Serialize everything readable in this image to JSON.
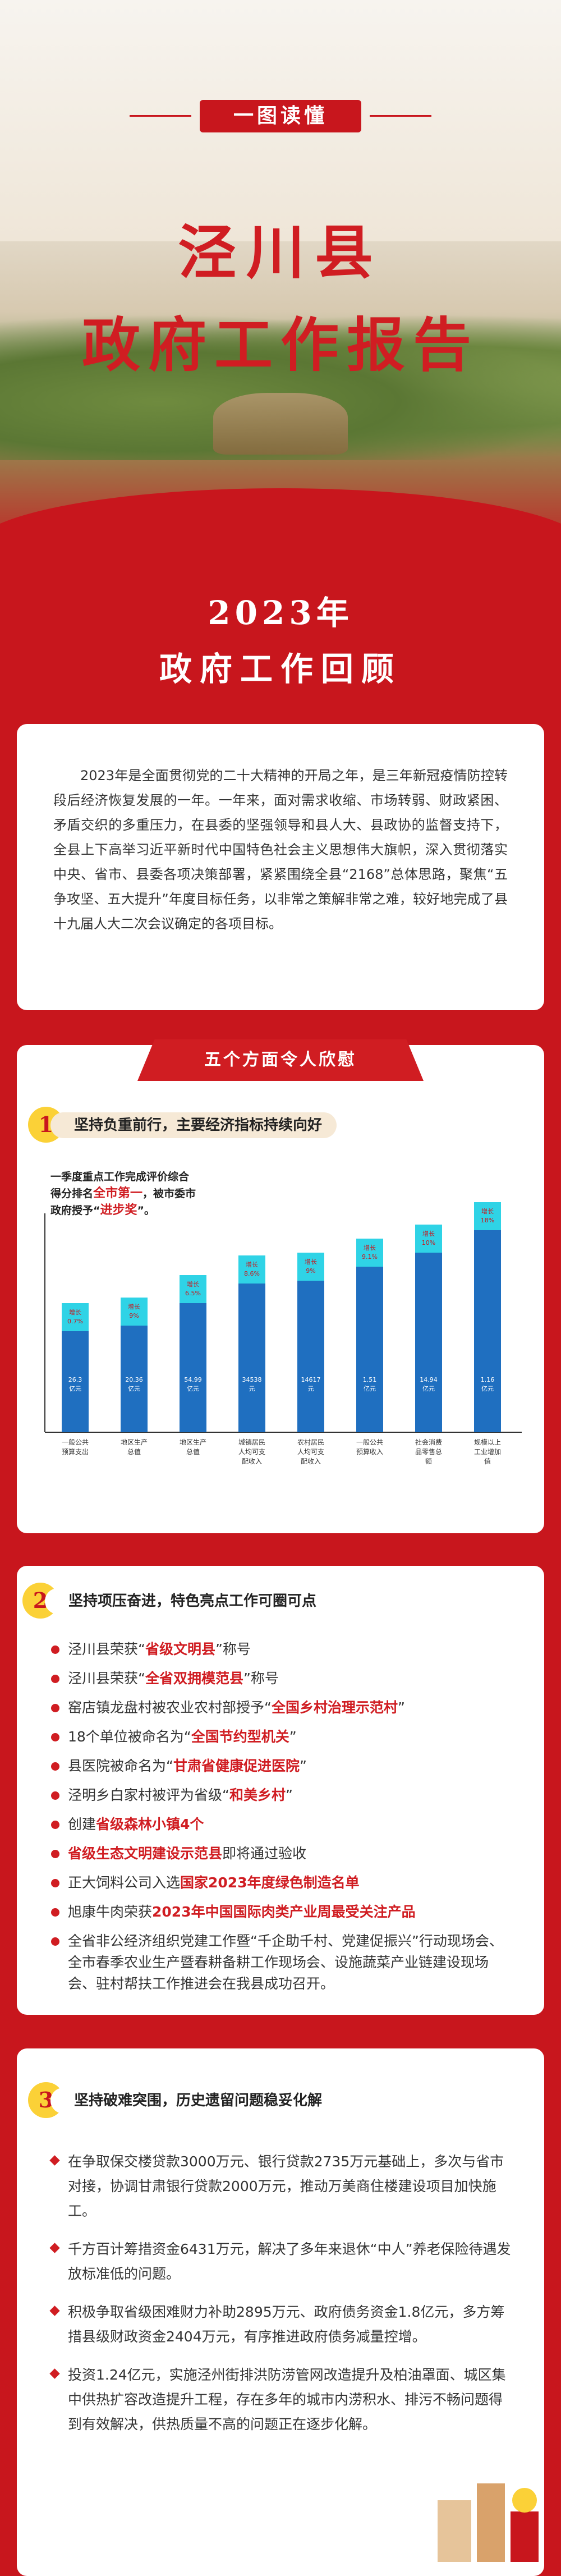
{
  "header": {
    "badge": "一图读懂",
    "title_line1": "泾川县",
    "title_line2": "政府工作报告",
    "year": "2023年",
    "review": "政府工作回顾"
  },
  "intro": "2023年是全面贯彻党的二十大精神的开局之年，是三年新冠疫情防控转段后经济恢复发展的一年。一年来，面对需求收缩、市场转弱、财政紧困、矛盾交织的多重压力，在县委的坚强领导和县人大、县政协的监督支持下，全县上下高举习近平新时代中国特色社会主义思想伟大旗帜，深入贯彻落实中央、省市、县委各项决策部署，紧紧围绕全县“2168”总体思路，聚焦“五争攻坚、五大提升”年度目标任务，以非常之策解非常之难，较好地完成了县十九届人大二次会议确定的各项目标。",
  "section1": {
    "ribbon": "五个方面令人欣慰",
    "num": "1",
    "heading": "坚持负重前行，主要经济指标持续向好",
    "note_line1": "一季度重点工作完成评价综合",
    "note_line2_a": "得分排名",
    "note_line2_b": "全市第一",
    "note_line2_c": "，被市委市",
    "note_line3_a": "政府授予“",
    "note_line3_b": "进步奖",
    "note_line3_c": "”。"
  },
  "chart_data": {
    "type": "bar",
    "categories": [
      "一般公共预算支出",
      "地区生产总值",
      "地区生产总值",
      "城镇居民人均可支配收入",
      "农村居民人均可支配收入",
      "一般公共预算收入",
      "社会消费品零售总额",
      "规模以上工业增加值"
    ],
    "values": [
      26.3,
      20.36,
      54.99,
      34538,
      14617,
      1.51,
      14.94,
      1.16
    ],
    "value_labels": [
      "26.3\n亿元",
      "20.36\n亿元",
      "54.99\n亿元",
      "34538\n元",
      "14617\n元",
      "1.51\n亿元",
      "14.94\n亿元",
      "1.16\n亿元"
    ],
    "growth_labels": [
      "增长\n0.7%",
      "增长\n9%",
      "增长\n6.5%",
      "增长\n8.6%",
      "增长\n9%",
      "增长\n9.1%",
      "增长\n10%",
      "增长\n18%"
    ],
    "colors": {
      "bar": "#1f6fc0",
      "cap": "#2fd3e6",
      "axis": "#333333"
    }
  },
  "section2": {
    "num": "2",
    "heading": "坚持项压奋进，特色亮点工作可圈可点",
    "items": [
      {
        "a": "泾川县荣获“",
        "b": "省级文明县",
        "c": "”称号"
      },
      {
        "a": "泾川县荣获“",
        "b": "全省双拥模范县",
        "c": "”称号"
      },
      {
        "a": "窑店镇龙盘村被农业农村部授予“",
        "b": "全国乡村治理示范村",
        "c": "”"
      },
      {
        "a": "18个单位被命名为“",
        "b": "全国节约型机关",
        "c": "”"
      },
      {
        "a": "县医院被命名为“",
        "b": "甘肃省健康促进医院",
        "c": "”"
      },
      {
        "a": "泾明乡白家村被评为省级“",
        "b": "和美乡村",
        "c": "”"
      },
      {
        "a": "创建",
        "b": "省级森林小镇4个",
        "c": ""
      },
      {
        "a": "",
        "b": "省级生态文明建设示范县",
        "c": "即将通过验收"
      },
      {
        "a": "正大饲料公司入选",
        "b": "国家2023年度绿色制造名单",
        "c": ""
      },
      {
        "a": "旭康牛肉荣获",
        "b": "2023年中国国际肉类产业周最受关注产品",
        "c": ""
      },
      {
        "a": "全省非公经济组织党建工作暨“千企助千村、党建促振兴”行动现场会、全市春季农业生产暨春耕备耕工作现场会、设施蔬菜产业链建设现场会、驻村帮扶工作推进会在我县成功召开。",
        "b": "",
        "c": ""
      }
    ]
  },
  "section3": {
    "num": "3",
    "heading": "坚持破难突围，历史遗留问题稳妥化解",
    "items": [
      "在争取保交楼贷款3000万元、银行贷款2735万元基础上，多次与省市对接，协调甘肃银行贷款2000万元，推动万美商住楼建设项目加快施工。",
      "千方百计筹措资金6431万元，解决了多年来退休“中人”养老保险待遇发放标准低的问题。",
      "积极争取省级困难财力补助2895万元、政府债务资金1.8亿元，多方筹措县级财政资金2404万元，有序推进政府债务减量控增。",
      "投资1.24亿元，实施泾州街排洪防涝管网改造提升及柏油罩面、城区集中供热扩容改造提升工程，存在多年的城市内涝积水、排污不畅问题得到有效解决，供热质量不高的问题正在逐步化解。"
    ]
  }
}
